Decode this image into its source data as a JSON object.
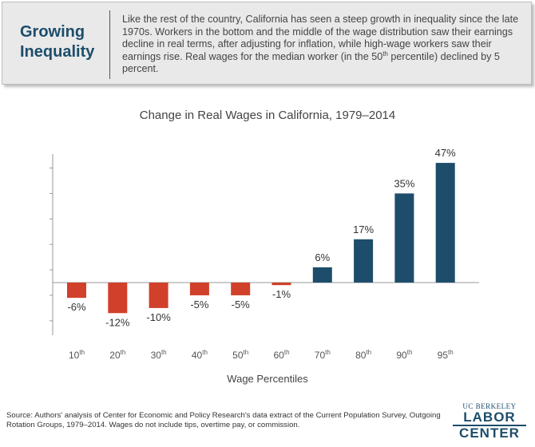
{
  "callout": {
    "title_line1": "Growing",
    "title_line2": "Inequality",
    "text_before": "Like the rest of the country, California has seen a steep growth in inequality since the late 1970s. Workers in the bottom and the middle of the wage distribution saw their earnings decline in real terms, after adjusting for inflation, while high-wage workers saw their earnings rise. Real wages for the median worker (in the 50",
    "text_sup": "th",
    "text_after": " percentile) declined by 5 percent."
  },
  "chart_data": {
    "type": "bar",
    "title": "Change in Real Wages in California, 1979–2014",
    "xlabel": "Wage Percentiles",
    "ylabel": "",
    "categories": [
      "10",
      "20",
      "30",
      "40",
      "50",
      "60",
      "70",
      "80",
      "90",
      "95"
    ],
    "category_suffix": "th",
    "values": [
      -6,
      -12,
      -10,
      -5,
      -5,
      -1,
      6,
      17,
      35,
      47
    ],
    "data_labels": [
      "-6%",
      "-12%",
      "-10%",
      "-5%",
      "-5%",
      "-1%",
      "6%",
      "17%",
      "35%",
      "47%"
    ],
    "ylim": [
      -15,
      50
    ],
    "grid": false,
    "colors": {
      "negative": "#d0402a",
      "positive": "#1d4d6b"
    }
  },
  "source": "Source: Authors' analysis of Center for Economic and Policy Research's data extract of the Current Population Survey, Outgoing Rotation Groups, 1979–2014. Wages do not include tips, overtime pay, or commission.",
  "logo": {
    "top": "UC BERKELEY",
    "mid": "LABOR",
    "bot": "CENTER"
  }
}
